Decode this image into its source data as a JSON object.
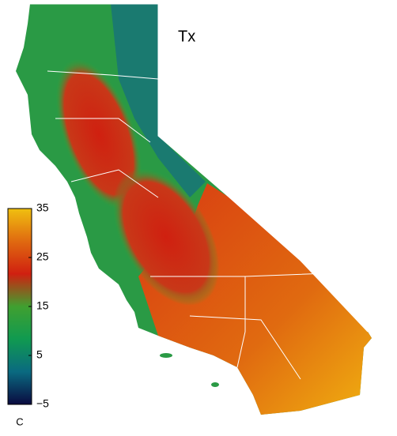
{
  "title": "Tx",
  "colorbar": {
    "label": "C",
    "lim": [
      -5,
      35
    ],
    "ticks": [
      {
        "value": 35,
        "label": "35"
      },
      {
        "value": 25,
        "label": "25"
      },
      {
        "value": 15,
        "label": "15"
      },
      {
        "value": 5,
        "label": "5"
      },
      {
        "value": -5,
        "label": "−5"
      }
    ],
    "colors": [
      "#0a0a40",
      "#0a6a80",
      "#109a50",
      "#40a030",
      "#d02010",
      "#e06a10",
      "#f0c010"
    ]
  }
}
